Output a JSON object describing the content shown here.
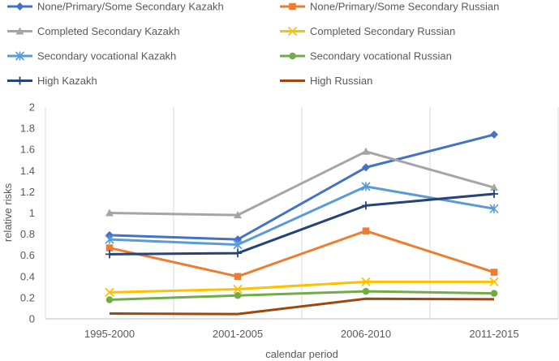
{
  "chart_data": {
    "type": "line",
    "title": "",
    "xlabel": "calendar period",
    "ylabel": "relative risks",
    "categories": [
      "1995-2000",
      "2001-2005",
      "2006-2010",
      "2011-2015"
    ],
    "ylim": [
      0,
      2
    ],
    "yticks": [
      "0",
      "0.2",
      "0.4",
      "0.6",
      "0.8",
      "1",
      "1.2",
      "1.4",
      "1.6",
      "1.8",
      "2"
    ],
    "grid": "vertical",
    "legend_position": "top",
    "series": [
      {
        "name": "None/Primary/Some Secondary Kazakh",
        "color": "#4472C4",
        "marker": "diamond",
        "values": [
          0.79,
          0.75,
          1.43,
          1.74
        ]
      },
      {
        "name": "None/Primary/Some Secondary Russian",
        "color": "#ED7D31",
        "marker": "square",
        "values": [
          0.67,
          0.4,
          0.83,
          0.44
        ]
      },
      {
        "name": "Completed Secondary Kazakh",
        "color": "#A5A5A5",
        "marker": "triangle",
        "values": [
          1.0,
          0.98,
          1.58,
          1.24
        ]
      },
      {
        "name": "Completed Secondary Russian",
        "color": "#FFC000",
        "marker": "x",
        "values": [
          0.25,
          0.28,
          0.35,
          0.35
        ]
      },
      {
        "name": "Secondary vocational Kazakh",
        "color": "#5B9BD5",
        "marker": "star",
        "values": [
          0.75,
          0.7,
          1.25,
          1.04
        ]
      },
      {
        "name": "Secondary vocational Russian",
        "color": "#70AD47",
        "marker": "circle",
        "values": [
          0.18,
          0.22,
          0.26,
          0.24
        ]
      },
      {
        "name": "High Kazakh",
        "color": "#264478",
        "marker": "plus",
        "values": [
          0.61,
          0.62,
          1.07,
          1.18
        ]
      },
      {
        "name": "High Russian",
        "color": "#9E480E",
        "marker": "none",
        "values": [
          0.05,
          0.045,
          0.19,
          0.185
        ]
      }
    ]
  }
}
